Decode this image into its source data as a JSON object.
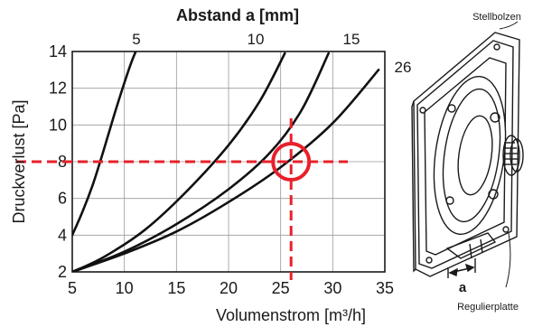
{
  "chart_data": {
    "type": "line",
    "title": "Abstand a [mm]",
    "xlabel": "Volumenstrom [m³/h]",
    "ylabel": "Druckverlust [Pa]",
    "xlim": [
      5,
      35
    ],
    "ylim": [
      2,
      14
    ],
    "x_ticks": [
      5,
      10,
      15,
      20,
      25,
      30,
      35
    ],
    "y_ticks": [
      2,
      4,
      6,
      8,
      10,
      12,
      14
    ],
    "grid": true,
    "series": [
      {
        "name": "5",
        "x": [
          5,
          6,
          7,
          8,
          9,
          10,
          10.8,
          11.5
        ],
        "y": [
          4,
          5.3,
          6.8,
          8.6,
          10.5,
          12.3,
          13.6,
          14.5
        ]
      },
      {
        "name": "10",
        "x": [
          5,
          8,
          12,
          16,
          20,
          23,
          25.4
        ],
        "y": [
          2,
          2.8,
          4.3,
          6.4,
          8.9,
          11.3,
          13.9
        ]
      },
      {
        "name": "15",
        "x": [
          5,
          10,
          15,
          20,
          24,
          27,
          29.6
        ],
        "y": [
          2,
          3.1,
          4.6,
          6.5,
          8.5,
          10.8,
          13.9
        ]
      },
      {
        "name": "26",
        "x": [
          5,
          10,
          15,
          20,
          25,
          30,
          34.4
        ],
        "y": [
          2,
          3.0,
          4.2,
          5.8,
          7.7,
          10.1,
          13.0
        ]
      }
    ],
    "annotation": {
      "x": 26,
      "y": 8,
      "color": "#e8202a"
    }
  },
  "figure": {
    "labels": {
      "bolt": "Stellbolzen",
      "plate": "Regulierplatte",
      "distance": "a"
    }
  }
}
